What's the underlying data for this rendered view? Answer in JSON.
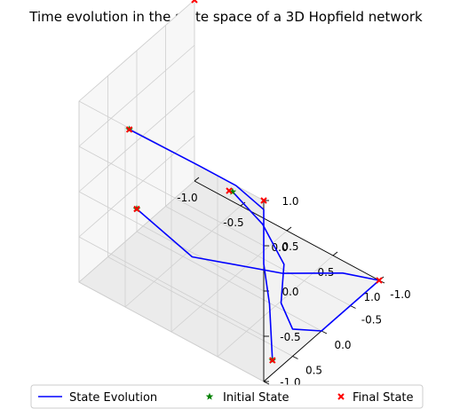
{
  "chart_data": {
    "type": "line3d",
    "title": "Time evolution in the state space of a 3D Hopfield network",
    "axes": {
      "x": {
        "range": [
          -1,
          1
        ],
        "ticks": [
          "-1.0",
          "-0.5",
          "0.0",
          "0.5",
          "1.0"
        ]
      },
      "y": {
        "range": [
          -1,
          1
        ],
        "ticks": [
          "-1.0",
          "-0.5",
          "0.0",
          "0.5",
          "1.0"
        ]
      },
      "z": {
        "range": [
          -1,
          1
        ],
        "ticks": [
          "-1.0",
          "-0.5",
          "0.0",
          "0.5",
          "1.0"
        ]
      }
    },
    "grid": true,
    "legend": {
      "placement": "bottom",
      "entries": [
        "State Evolution",
        "Initial State",
        "Final State"
      ]
    },
    "series": [
      {
        "name": "State Evolution",
        "kind": "line",
        "color": "#0000ff",
        "trajectories": [
          [
            [
              -0.55,
              0.85,
              0.85
            ],
            [
              0.3,
              1.0,
              1.0
            ],
            [
              0.7,
              1.0,
              1.0
            ],
            [
              1.0,
              1.0,
              0.9
            ],
            [
              1.0,
              1.0,
              0.3
            ],
            [
              1.0,
              0.9,
              -0.2
            ],
            [
              1.0,
              0.85,
              -0.85
            ]
          ],
          [
            [
              0.1,
              0.1,
              0.1
            ],
            [
              0.55,
              0.3,
              0.1
            ],
            [
              1.0,
              0.65,
              0.1
            ],
            [
              1.0,
              0.7,
              -0.3
            ],
            [
              1.0,
              0.5,
              -0.7
            ],
            [
              1.0,
              0.0,
              -1.0
            ],
            [
              1.0,
              -0.3,
              -1.0
            ],
            [
              1.0,
              -0.7,
              -1.0
            ],
            [
              1.0,
              -1.0,
              -1.0
            ]
          ],
          [
            [
              -1.0,
              0.0,
              -0.75
            ],
            [
              -0.4,
              0.0,
              -0.95
            ],
            [
              0.3,
              -0.45,
              -1.0
            ],
            [
              0.7,
              -0.85,
              -1.0
            ],
            [
              1.0,
              -1.0,
              -1.0
            ]
          ]
        ]
      },
      {
        "name": "Initial State",
        "kind": "scatter",
        "color": "#008000",
        "points": [
          [
            -0.55,
            0.85,
            0.85
          ],
          [
            0.1,
            0.1,
            0.1
          ],
          [
            1.0,
            0.85,
            -0.85
          ],
          [
            -1.0,
            0.0,
            -0.75
          ]
        ]
      },
      {
        "name": "Final State",
        "kind": "scatter",
        "color": "#ff0000",
        "points": [
          [
            -0.55,
            0.85,
            0.85
          ],
          [
            1.0,
            1.0,
            1.0
          ],
          [
            -1.0,
            -1.0,
            1.0
          ],
          [
            0.0,
            0.0,
            0.0
          ],
          [
            1.0,
            0.85,
            -0.85
          ],
          [
            1.0,
            -1.0,
            -1.0
          ],
          [
            -1.0,
            0.0,
            -0.75
          ]
        ]
      }
    ]
  }
}
